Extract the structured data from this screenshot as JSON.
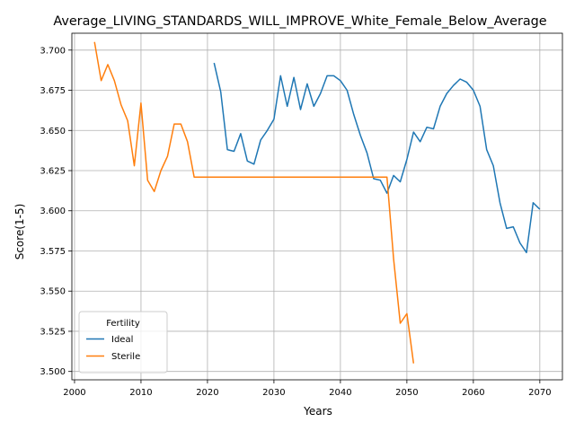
{
  "chart_data": {
    "type": "line",
    "title": "Average_LIVING_STANDARDS_WILL_IMPROVE_White_Female_Below_Average",
    "xlabel": "Years",
    "ylabel": "Score(1-5)",
    "xlim": [
      1999.6,
      2073.4
    ],
    "ylim": [
      3.4948,
      3.7105
    ],
    "xticks": [
      2000,
      2010,
      2020,
      2030,
      2040,
      2050,
      2060,
      2070
    ],
    "yticks": [
      3.5,
      3.525,
      3.55,
      3.575,
      3.6,
      3.625,
      3.65,
      3.675,
      3.7
    ],
    "ytick_labels": [
      "3.500",
      "3.525",
      "3.550",
      "3.575",
      "3.600",
      "3.625",
      "3.650",
      "3.675",
      "3.700"
    ],
    "grid": true,
    "legend": {
      "title": "Fertility",
      "placement": "lower-left"
    },
    "series": [
      {
        "name": "Ideal",
        "color": "#1f77b4",
        "x": [
          2021,
          2022,
          2023,
          2024,
          2025,
          2026,
          2027,
          2028,
          2029,
          2030,
          2031,
          2032,
          2033,
          2034,
          2035,
          2036,
          2037,
          2038,
          2039,
          2040,
          2041,
          2042,
          2043,
          2044,
          2045,
          2046,
          2047,
          2048,
          2049,
          2050,
          2051,
          2052,
          2053,
          2054,
          2055,
          2056,
          2057,
          2058,
          2059,
          2060,
          2061,
          2062,
          2063,
          2064,
          2065,
          2066,
          2067,
          2068,
          2069,
          2070
        ],
        "y": [
          3.692,
          3.674,
          3.638,
          3.637,
          3.648,
          3.631,
          3.629,
          3.644,
          3.65,
          3.657,
          3.684,
          3.665,
          3.683,
          3.663,
          3.679,
          3.665,
          3.673,
          3.684,
          3.684,
          3.681,
          3.675,
          3.66,
          3.647,
          3.636,
          3.62,
          3.619,
          3.611,
          3.622,
          3.618,
          3.632,
          3.649,
          3.643,
          3.652,
          3.651,
          3.665,
          3.673,
          3.678,
          3.682,
          3.68,
          3.675,
          3.665,
          3.638,
          3.628,
          3.605,
          3.589,
          3.59,
          3.58,
          3.574,
          3.605,
          3.601
        ]
      },
      {
        "name": "Sterile",
        "color": "#ff7f0e",
        "x": [
          2003,
          2004,
          2005,
          2006,
          2007,
          2008,
          2009,
          2010,
          2011,
          2012,
          2013,
          2014,
          2015,
          2016,
          2017,
          2018,
          2019,
          2020,
          2021,
          2022,
          2023,
          2024,
          2025,
          2026,
          2027,
          2028,
          2029,
          2030,
          2031,
          2032,
          2033,
          2034,
          2035,
          2036,
          2037,
          2038,
          2039,
          2040,
          2041,
          2042,
          2043,
          2044,
          2045,
          2046,
          2047,
          2048,
          2049,
          2050,
          2051
        ],
        "y": [
          3.705,
          3.681,
          3.691,
          3.681,
          3.666,
          3.656,
          3.628,
          3.667,
          3.619,
          3.612,
          3.625,
          3.634,
          3.654,
          3.654,
          3.643,
          3.621,
          3.621,
          3.621,
          3.621,
          3.621,
          3.621,
          3.621,
          3.621,
          3.621,
          3.621,
          3.621,
          3.621,
          3.621,
          3.621,
          3.621,
          3.621,
          3.621,
          3.621,
          3.621,
          3.621,
          3.621,
          3.621,
          3.621,
          3.621,
          3.621,
          3.621,
          3.621,
          3.621,
          3.621,
          3.621,
          3.57,
          3.53,
          3.536,
          3.505
        ]
      }
    ]
  }
}
